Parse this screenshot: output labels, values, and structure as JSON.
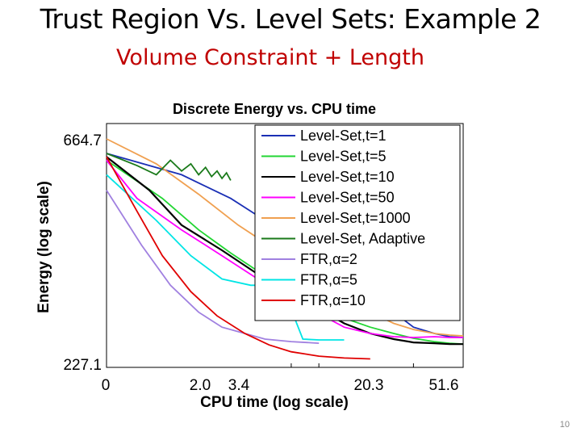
{
  "slide": {
    "title": "Trust Region Vs. Level Sets: Example 2",
    "subtitle": "Volume Constraint + Length",
    "page_number": "10"
  },
  "chart_data": {
    "type": "line",
    "title": "Discrete Energy vs. CPU time",
    "xlabel": "CPU time (log scale)",
    "ylabel": "Energy (log scale)",
    "x_scale": "log",
    "y_scale": "log",
    "xlim": [
      0,
      51.6
    ],
    "ylim": [
      227.1,
      664.7
    ],
    "x_ticks": [
      "0",
      "2.0",
      "3.4",
      "20.3",
      "51.6"
    ],
    "y_ticks": [
      "664.7",
      "227.1"
    ],
    "legend_position": "top-right",
    "grid": false,
    "series": [
      {
        "name": "Level-Set,t=1",
        "color": "#1a2fb5",
        "points": [
          [
            0.0,
            620
          ],
          [
            0.2,
            560
          ],
          [
            0.6,
            500
          ],
          [
            1.2,
            450
          ],
          [
            2.0,
            415
          ],
          [
            3.4,
            375
          ],
          [
            5.5,
            345
          ],
          [
            9,
            315
          ],
          [
            14,
            290
          ],
          [
            20.3,
            270
          ],
          [
            30,
            262
          ],
          [
            40,
            258
          ],
          [
            51.6,
            257
          ]
        ]
      },
      {
        "name": "Level-Set,t=5",
        "color": "#22d633",
        "points": [
          [
            0.0,
            600
          ],
          [
            0.12,
            500
          ],
          [
            0.3,
            430
          ],
          [
            0.6,
            385
          ],
          [
            1.2,
            345
          ],
          [
            2.0,
            320
          ],
          [
            3.4,
            298
          ],
          [
            5.5,
            282
          ],
          [
            9,
            270
          ],
          [
            14,
            262
          ],
          [
            20.3,
            256
          ],
          [
            30,
            252
          ],
          [
            40,
            250
          ],
          [
            51.6,
            249
          ]
        ]
      },
      {
        "name": "Level-Set,t=10",
        "color": "#000000",
        "points": [
          [
            0.0,
            610
          ],
          [
            0.08,
            520
          ],
          [
            0.2,
            440
          ],
          [
            0.5,
            390
          ],
          [
            1.0,
            350
          ],
          [
            2.0,
            318
          ],
          [
            3.4,
            295
          ],
          [
            5.5,
            275
          ],
          [
            9,
            262
          ],
          [
            14,
            255
          ],
          [
            20.3,
            251
          ],
          [
            30,
            250
          ],
          [
            40,
            249
          ],
          [
            51.6,
            249
          ]
        ]
      },
      {
        "name": "Level-Set,t=50",
        "color": "#ff00ff",
        "points": [
          [
            0.0,
            600
          ],
          [
            0.05,
            500
          ],
          [
            0.2,
            430
          ],
          [
            0.5,
            380
          ],
          [
            1.0,
            342
          ],
          [
            2.0,
            310
          ],
          [
            3.4,
            288
          ],
          [
            5.5,
            270
          ],
          [
            9,
            262
          ],
          [
            14,
            258
          ],
          [
            20.3,
            257
          ],
          [
            30,
            258
          ],
          [
            40,
            257
          ],
          [
            51.6,
            257
          ]
        ]
      },
      {
        "name": "Level-Set,t=1000",
        "color": "#f0a050",
        "points": [
          [
            0.0,
            664.7
          ],
          [
            0.1,
            590
          ],
          [
            0.3,
            510
          ],
          [
            0.7,
            440
          ],
          [
            1.5,
            390
          ],
          [
            2.0,
            365
          ],
          [
            3.4,
            335
          ],
          [
            5.5,
            310
          ],
          [
            9,
            290
          ],
          [
            14,
            275
          ],
          [
            20.3,
            267
          ],
          [
            30,
            262
          ],
          [
            40,
            260
          ],
          [
            51.6,
            259
          ]
        ]
      },
      {
        "name": "Level-Set, Adaptive",
        "color": "#1a7a1a",
        "points": [
          [
            0.0,
            620
          ],
          [
            0.05,
            585
          ],
          [
            0.1,
            560
          ],
          [
            0.15,
            600
          ],
          [
            0.2,
            570
          ],
          [
            0.25,
            590
          ],
          [
            0.3,
            560
          ],
          [
            0.35,
            580
          ],
          [
            0.4,
            555
          ],
          [
            0.45,
            570
          ],
          [
            0.5,
            550
          ],
          [
            0.55,
            565
          ],
          [
            0.6,
            545
          ]
        ]
      },
      {
        "name": "FTR,α=2",
        "color": "#a080e0",
        "points": [
          [
            0.0,
            520
          ],
          [
            0.06,
            400
          ],
          [
            0.15,
            330
          ],
          [
            0.3,
            290
          ],
          [
            0.5,
            270
          ],
          [
            0.8,
            262
          ],
          [
            1.2,
            255
          ],
          [
            2.0,
            252
          ],
          [
            3.4,
            250
          ]
        ]
      },
      {
        "name": "FTR,α=5",
        "color": "#00e5e5",
        "points": [
          [
            0.0,
            560
          ],
          [
            0.1,
            450
          ],
          [
            0.25,
            380
          ],
          [
            0.5,
            340
          ],
          [
            0.9,
            330
          ],
          [
            1.3,
            330
          ],
          [
            1.7,
            285
          ],
          [
            2.1,
            285
          ],
          [
            2.5,
            255
          ],
          [
            3.4,
            254
          ],
          [
            5.5,
            254
          ]
        ]
      },
      {
        "name": "FTR,α=10",
        "color": "#e00000",
        "points": [
          [
            0.0,
            610
          ],
          [
            0.05,
            470
          ],
          [
            0.12,
            380
          ],
          [
            0.25,
            320
          ],
          [
            0.45,
            285
          ],
          [
            0.8,
            262
          ],
          [
            1.3,
            248
          ],
          [
            2.0,
            240
          ],
          [
            3.4,
            235
          ],
          [
            5.5,
            233
          ],
          [
            9,
            232
          ]
        ]
      }
    ]
  }
}
